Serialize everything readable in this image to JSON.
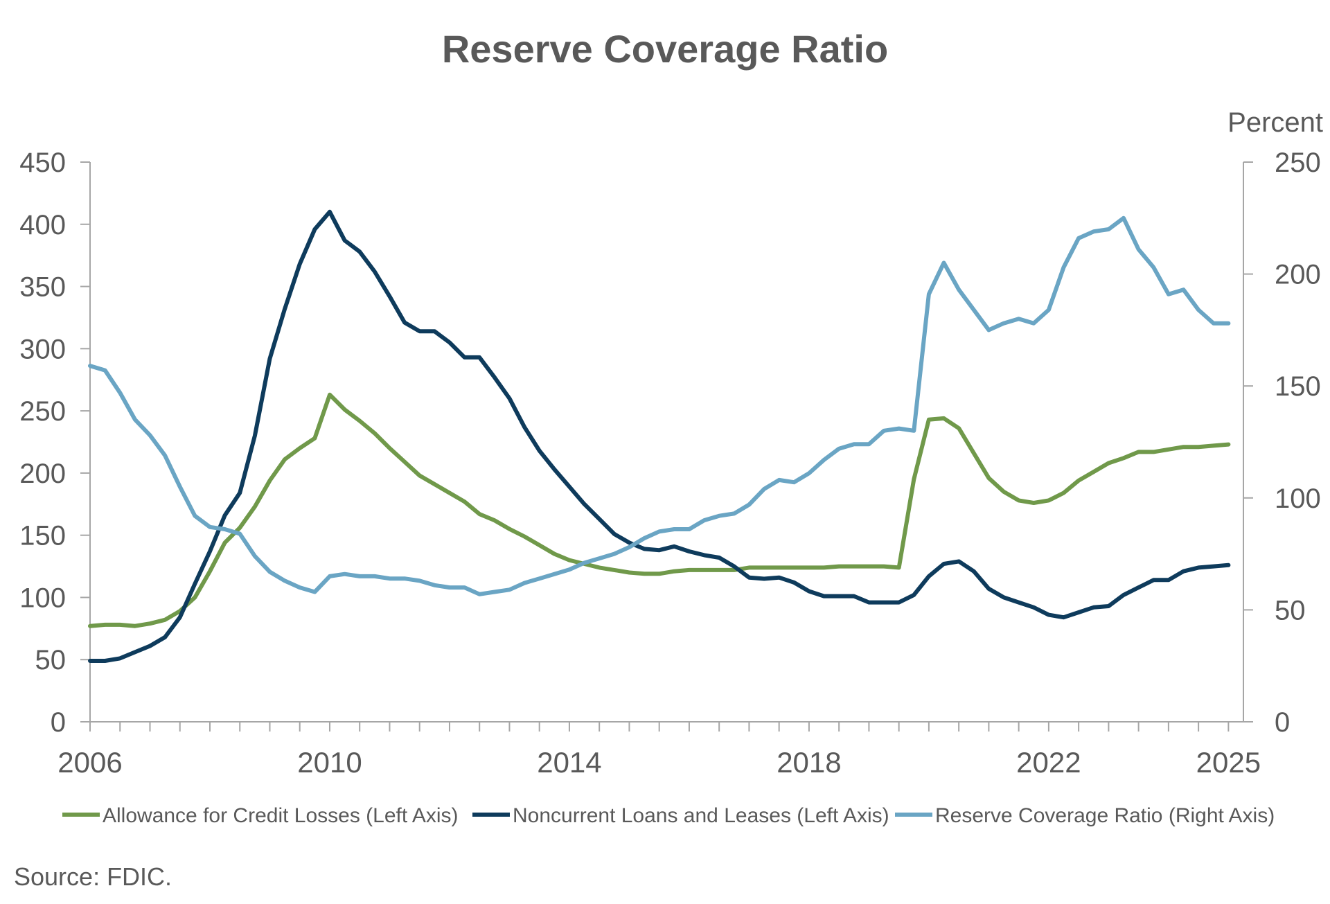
{
  "chart_data": {
    "type": "line",
    "title": "Reserve Coverage Ratio",
    "y2label": "Percent",
    "source": "Source: FDIC.",
    "x_tick_labels": [
      "2006",
      "2010",
      "2014",
      "2018",
      "2022",
      "2025"
    ],
    "x_tick_values": [
      2006,
      2010,
      2014,
      2018,
      2022,
      2025
    ],
    "x_range": [
      2006.0,
      2025.25
    ],
    "ylim": [
      0,
      450
    ],
    "y_ticks": [
      0,
      50,
      100,
      150,
      200,
      250,
      300,
      350,
      400,
      450
    ],
    "y2lim": [
      0,
      250
    ],
    "y2_ticks": [
      0,
      50,
      100,
      150,
      200,
      250
    ],
    "grid": false,
    "legend_position": "bottom",
    "x": [
      2006.0,
      2006.25,
      2006.5,
      2006.75,
      2007.0,
      2007.25,
      2007.5,
      2007.75,
      2008.0,
      2008.25,
      2008.5,
      2008.75,
      2009.0,
      2009.25,
      2009.5,
      2009.75,
      2010.0,
      2010.25,
      2010.5,
      2010.75,
      2011.0,
      2011.25,
      2011.5,
      2011.75,
      2012.0,
      2012.25,
      2012.5,
      2012.75,
      2013.0,
      2013.25,
      2013.5,
      2013.75,
      2014.0,
      2014.25,
      2014.5,
      2014.75,
      2015.0,
      2015.25,
      2015.5,
      2015.75,
      2016.0,
      2016.25,
      2016.5,
      2016.75,
      2017.0,
      2017.25,
      2017.5,
      2017.75,
      2018.0,
      2018.25,
      2018.5,
      2018.75,
      2019.0,
      2019.25,
      2019.5,
      2019.75,
      2020.0,
      2020.25,
      2020.5,
      2020.75,
      2021.0,
      2021.25,
      2021.5,
      2021.75,
      2022.0,
      2022.25,
      2022.5,
      2022.75,
      2023.0,
      2023.25,
      2023.5,
      2023.75,
      2024.0,
      2024.25,
      2024.5,
      2024.75,
      2025.0
    ],
    "series": [
      {
        "name": "Allowance for Credit Losses (Left Axis)",
        "axis": "left",
        "color": "#70994a",
        "values": [
          77,
          78,
          78,
          77,
          79,
          82,
          89,
          100,
          121,
          144,
          156,
          173,
          194,
          211,
          220,
          228,
          263,
          251,
          242,
          232,
          220,
          209,
          198,
          191,
          184,
          177,
          167,
          162,
          155,
          149,
          142,
          135,
          130,
          127,
          124,
          122,
          120,
          119,
          119,
          121,
          122,
          122,
          122,
          122,
          124,
          124,
          124,
          124,
          124,
          124,
          125,
          125,
          125,
          125,
          124,
          195,
          243,
          244,
          236,
          216,
          196,
          185,
          178,
          176,
          178,
          184,
          194,
          201,
          208,
          212,
          217,
          217,
          219,
          221,
          221,
          222,
          223
        ]
      },
      {
        "name": "Noncurrent Loans and Leases (Left Axis)",
        "axis": "left",
        "color": "#0e3b5c",
        "values": [
          49,
          49,
          51,
          56,
          61,
          68,
          84,
          111,
          137,
          166,
          184,
          230,
          292,
          332,
          368,
          396,
          410,
          387,
          378,
          362,
          342,
          321,
          314,
          314,
          305,
          293,
          293,
          277,
          260,
          237,
          218,
          203,
          189,
          175,
          163,
          151,
          144,
          139,
          138,
          141,
          137,
          134,
          132,
          125,
          116,
          115,
          116,
          112,
          105,
          101,
          101,
          101,
          96,
          96,
          96,
          102,
          117,
          127,
          129,
          121,
          107,
          100,
          96,
          92,
          86,
          84,
          88,
          92,
          93,
          102,
          108,
          114,
          114,
          121,
          124,
          125,
          126
        ]
      },
      {
        "name": "Reserve Coverage Ratio (Right Axis)",
        "axis": "right",
        "color": "#6aa5c4",
        "values": [
          159,
          157,
          147,
          135,
          128,
          119,
          105,
          92,
          87,
          86,
          84,
          74,
          67,
          63,
          60,
          58,
          65,
          66,
          65,
          65,
          64,
          64,
          63,
          61,
          60,
          60,
          57,
          58,
          59,
          62,
          64,
          66,
          68,
          71,
          73,
          75,
          78,
          82,
          85,
          86,
          86,
          90,
          92,
          93,
          97,
          104,
          108,
          107,
          111,
          117,
          122,
          124,
          124,
          130,
          131,
          130,
          191,
          205,
          193,
          184,
          175,
          178,
          180,
          178,
          184,
          203,
          216,
          219,
          220,
          225,
          211,
          203,
          191,
          193,
          184,
          178,
          178
        ]
      }
    ]
  }
}
